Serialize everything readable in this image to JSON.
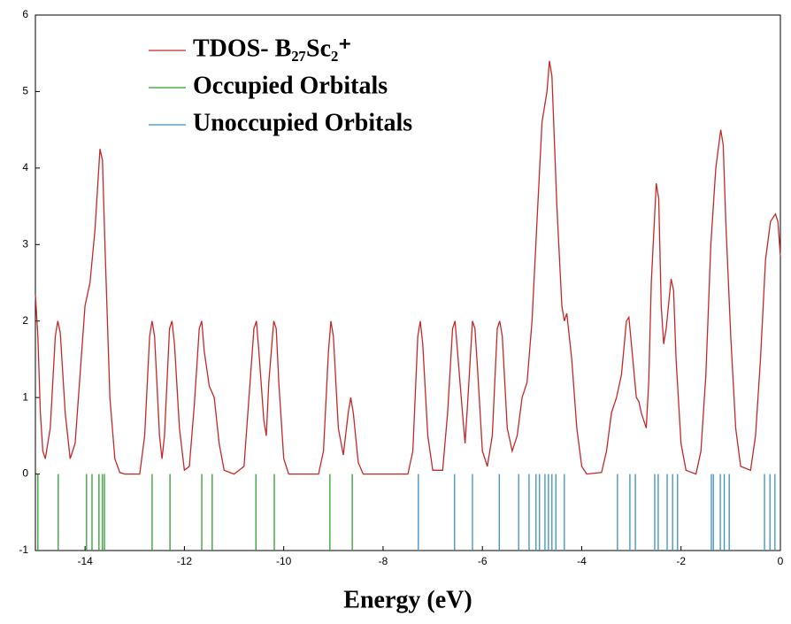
{
  "chart_data": {
    "type": "line",
    "xlabel": "Energy (eV)",
    "xlim": [
      -15,
      0
    ],
    "ylim": [
      -1,
      6
    ],
    "xticks": [
      -14,
      -12,
      -10,
      -8,
      -6,
      -4,
      -2,
      0
    ],
    "yticks": [
      -1,
      0,
      1,
      2,
      3,
      4,
      5,
      6
    ],
    "series": [
      {
        "name": "TDOS- B₂₇Sc₂⁺",
        "color": "#c62828",
        "kind": "line",
        "x": [
          -15.0,
          -14.95,
          -14.9,
          -14.85,
          -14.8,
          -14.7,
          -14.6,
          -14.55,
          -14.5,
          -14.4,
          -14.3,
          -14.2,
          -14.1,
          -14.0,
          -13.9,
          -13.8,
          -13.7,
          -13.65,
          -13.6,
          -13.5,
          -13.4,
          -13.3,
          -13.2,
          -12.9,
          -12.8,
          -12.7,
          -12.65,
          -12.6,
          -12.5,
          -12.45,
          -12.4,
          -12.3,
          -12.25,
          -12.2,
          -12.1,
          -12.0,
          -11.9,
          -11.8,
          -11.7,
          -11.65,
          -11.6,
          -11.5,
          -11.4,
          -11.3,
          -11.2,
          -11.0,
          -10.8,
          -10.7,
          -10.6,
          -10.55,
          -10.5,
          -10.4,
          -10.35,
          -10.3,
          -10.2,
          -10.15,
          -10.1,
          -10.0,
          -9.9,
          -9.3,
          -9.2,
          -9.1,
          -9.05,
          -9.0,
          -8.9,
          -8.8,
          -8.7,
          -8.65,
          -8.6,
          -8.5,
          -8.4,
          -7.5,
          -7.4,
          -7.3,
          -7.25,
          -7.2,
          -7.1,
          -7.0,
          -6.8,
          -6.7,
          -6.6,
          -6.55,
          -6.5,
          -6.4,
          -6.35,
          -6.3,
          -6.2,
          -6.15,
          -6.1,
          -6.0,
          -5.9,
          -5.8,
          -5.7,
          -5.65,
          -5.6,
          -5.5,
          -5.4,
          -5.3,
          -5.2,
          -5.1,
          -5.0,
          -4.9,
          -4.8,
          -4.7,
          -4.65,
          -4.6,
          -4.5,
          -4.4,
          -4.35,
          -4.3,
          -4.2,
          -4.1,
          -4.0,
          -3.9,
          -3.6,
          -3.5,
          -3.4,
          -3.3,
          -3.2,
          -3.1,
          -3.05,
          -3.0,
          -2.9,
          -2.85,
          -2.8,
          -2.7,
          -2.65,
          -2.6,
          -2.5,
          -2.45,
          -2.4,
          -2.35,
          -2.3,
          -2.2,
          -2.15,
          -2.1,
          -2.0,
          -1.9,
          -1.7,
          -1.6,
          -1.5,
          -1.4,
          -1.3,
          -1.2,
          -1.15,
          -1.1,
          -1.0,
          -0.9,
          -0.8,
          -0.6,
          -0.5,
          -0.4,
          -0.3,
          -0.2,
          -0.1,
          -0.05,
          0.0
        ],
        "values": [
          2.35,
          1.8,
          0.8,
          0.3,
          0.2,
          0.6,
          1.8,
          2.0,
          1.85,
          0.8,
          0.2,
          0.4,
          1.3,
          2.2,
          2.5,
          3.2,
          4.25,
          4.1,
          3.0,
          1.0,
          0.2,
          0.02,
          0,
          0,
          0.5,
          1.8,
          2.0,
          1.8,
          0.5,
          0.2,
          0.5,
          1.9,
          2.0,
          1.7,
          0.6,
          0.05,
          0.1,
          0.9,
          1.9,
          2.0,
          1.6,
          1.15,
          1.0,
          0.4,
          0.05,
          0,
          0.1,
          1.0,
          1.9,
          2.0,
          1.6,
          0.7,
          0.5,
          1.2,
          2.0,
          1.9,
          1.2,
          0.2,
          0,
          0,
          0.3,
          1.6,
          2.0,
          1.8,
          0.6,
          0.25,
          0.8,
          1.0,
          0.8,
          0.15,
          0,
          0,
          0.3,
          1.8,
          2.0,
          1.7,
          0.5,
          0.05,
          0.05,
          0.8,
          1.9,
          2.0,
          1.6,
          0.8,
          0.4,
          0.9,
          2.0,
          1.9,
          1.4,
          0.3,
          0.1,
          0.5,
          1.9,
          2.0,
          1.8,
          0.6,
          0.3,
          0.5,
          1.0,
          1.2,
          2.0,
          3.3,
          4.6,
          5.0,
          5.4,
          5.2,
          3.5,
          2.2,
          2.0,
          2.1,
          1.5,
          0.6,
          0.1,
          0,
          0.02,
          0.3,
          0.8,
          1.0,
          1.3,
          2.0,
          2.05,
          1.7,
          1.0,
          0.95,
          0.8,
          0.6,
          1.2,
          2.5,
          3.8,
          3.6,
          2.2,
          1.7,
          1.9,
          2.55,
          2.4,
          1.5,
          0.4,
          0.05,
          0,
          0.3,
          1.3,
          3.0,
          4.0,
          4.5,
          4.3,
          3.3,
          1.8,
          0.6,
          0.1,
          0.05,
          0.5,
          1.5,
          2.8,
          3.3,
          3.4,
          3.3,
          2.85
        ]
      },
      {
        "name": "Occupied Orbitals",
        "color": "#2e9e2e",
        "kind": "sticks",
        "x": [
          -14.95,
          -14.54,
          -13.97,
          -13.86,
          -13.72,
          -13.65,
          -13.61,
          -12.65,
          -12.29,
          -11.65,
          -11.44,
          -10.56,
          -10.19,
          -9.07,
          -8.62
        ],
        "values": [
          -1,
          -1,
          -1,
          -1,
          -1,
          -1,
          -1,
          -1,
          -1,
          -1,
          -1,
          -1,
          -1,
          -1,
          -1
        ]
      },
      {
        "name": "Unoccupied Orbitals",
        "color": "#3a8fc8",
        "kind": "sticks",
        "x": [
          -7.29,
          -6.56,
          -6.2,
          -5.66,
          -5.27,
          -5.06,
          -4.92,
          -4.85,
          -4.74,
          -4.67,
          -4.6,
          -4.52,
          -4.35,
          -3.28,
          -3.03,
          -2.92,
          -2.53,
          -2.46,
          -2.28,
          -2.17,
          -2.07,
          -1.39,
          -1.35,
          -1.21,
          -1.13,
          -1.03,
          -0.32,
          -0.21,
          -0.11
        ],
        "values": [
          -1,
          -1,
          -1,
          -1,
          -1,
          -1,
          -1,
          -1,
          -1,
          -1,
          -1,
          -1,
          -1,
          -1,
          -1,
          -1,
          -1,
          -1,
          -1,
          -1,
          -1,
          -1,
          -1,
          -1,
          -1,
          -1,
          -1,
          -1,
          -1
        ]
      }
    ]
  }
}
